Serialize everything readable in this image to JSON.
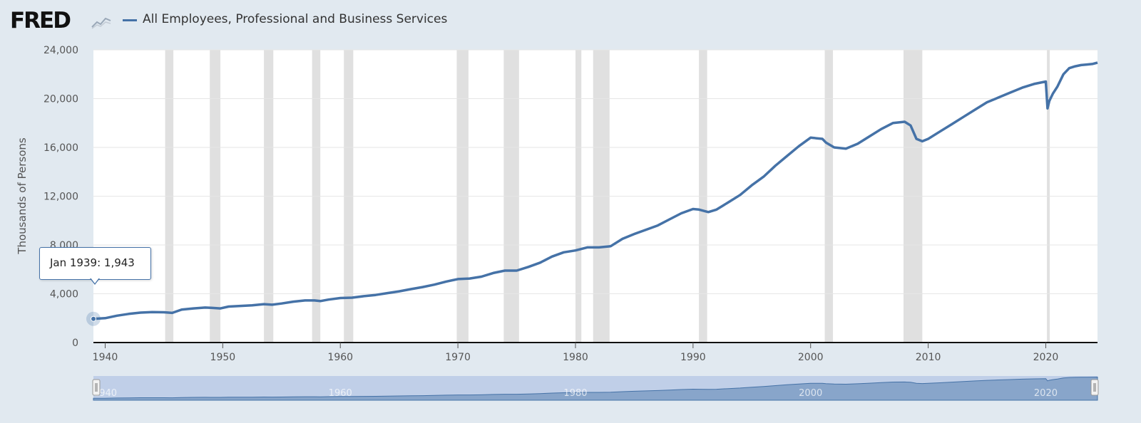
{
  "header": {
    "logo": "FRED",
    "series_title": "All Employees, Professional and Business Services"
  },
  "colors": {
    "series": "#4572a7",
    "recession": "#e0e0e0",
    "background": "#e1e9f0",
    "plot": "#ffffff",
    "navigator": "#b8c8e6"
  },
  "tooltip": {
    "date": "Jan 1939:",
    "value": "1,943"
  },
  "chart_data": {
    "type": "line",
    "title": "All Employees, Professional and Business Services",
    "ylabel": "Thousands of Persons",
    "xlabel": "",
    "ylim": [
      0,
      24000
    ],
    "xlim": [
      1939,
      2024.4
    ],
    "y_ticks": [
      "0",
      "4,000",
      "8,000",
      "12,000",
      "16,000",
      "20,000",
      "24,000"
    ],
    "y_tick_values": [
      0,
      4000,
      8000,
      12000,
      16000,
      20000,
      24000
    ],
    "x_ticks": [
      "1940",
      "1950",
      "1960",
      "1970",
      "1980",
      "1990",
      "2000",
      "2010",
      "2020"
    ],
    "x_tick_values": [
      1940,
      1950,
      1960,
      1970,
      1980,
      1990,
      2000,
      2010,
      2020
    ],
    "navigator_ticks": [
      "1940",
      "1960",
      "1980",
      "2000",
      "2020"
    ],
    "navigator_tick_values": [
      1940,
      1960,
      1980,
      2000,
      2020
    ],
    "recessions": [
      [
        1945.1,
        1945.8
      ],
      [
        1948.9,
        1949.8
      ],
      [
        1953.5,
        1954.3
      ],
      [
        1957.6,
        1958.3
      ],
      [
        1960.3,
        1961.1
      ],
      [
        1969.9,
        1970.9
      ],
      [
        1973.9,
        1975.2
      ],
      [
        1980.0,
        1980.5
      ],
      [
        1981.5,
        1982.9
      ],
      [
        1990.5,
        1991.2
      ],
      [
        2001.2,
        2001.9
      ],
      [
        2007.9,
        2009.5
      ],
      [
        2020.1,
        2020.3
      ]
    ],
    "series": [
      {
        "name": "All Employees, Professional and Business Services",
        "x": [
          1939.0,
          1940.0,
          1941.0,
          1942.0,
          1943.0,
          1944.0,
          1945.0,
          1945.7,
          1946.5,
          1947.5,
          1948.5,
          1949.0,
          1949.8,
          1950.5,
          1951.5,
          1952.5,
          1953.5,
          1954.2,
          1955.0,
          1956.0,
          1957.0,
          1957.8,
          1958.3,
          1959.0,
          1960.0,
          1961.0,
          1962.0,
          1963.0,
          1964.0,
          1965.0,
          1966.0,
          1967.0,
          1968.0,
          1969.0,
          1970.0,
          1971.0,
          1972.0,
          1973.0,
          1974.0,
          1975.0,
          1976.0,
          1977.0,
          1978.0,
          1979.0,
          1980.0,
          1981.0,
          1982.0,
          1983.0,
          1984.0,
          1985.0,
          1986.0,
          1987.0,
          1988.0,
          1989.0,
          1990.0,
          1990.5,
          1991.3,
          1992.0,
          1993.0,
          1994.0,
          1995.0,
          1996.0,
          1997.0,
          1998.0,
          1999.0,
          2000.0,
          2001.0,
          2001.3,
          2002.0,
          2003.0,
          2004.0,
          2005.0,
          2006.0,
          2007.0,
          2008.0,
          2008.5,
          2009.0,
          2009.5,
          2010.0,
          2011.0,
          2012.0,
          2013.0,
          2014.0,
          2015.0,
          2016.0,
          2017.0,
          2018.0,
          2019.0,
          2020.0,
          2020.15,
          2020.3,
          2020.6,
          2021.0,
          2021.5,
          2022.0,
          2022.5,
          2023.0,
          2023.5,
          2024.0,
          2024.4
        ],
        "values": [
          1943,
          2000,
          2200,
          2350,
          2450,
          2500,
          2480,
          2430,
          2700,
          2800,
          2870,
          2850,
          2800,
          2950,
          3000,
          3050,
          3150,
          3100,
          3200,
          3350,
          3450,
          3450,
          3400,
          3520,
          3650,
          3680,
          3800,
          3900,
          4050,
          4200,
          4380,
          4550,
          4750,
          5000,
          5200,
          5250,
          5400,
          5700,
          5900,
          5900,
          6200,
          6550,
          7050,
          7400,
          7550,
          7800,
          7800,
          7900,
          8500,
          8900,
          9250,
          9600,
          10100,
          10600,
          10950,
          10900,
          10700,
          10900,
          11500,
          12100,
          12900,
          13600,
          14500,
          15300,
          16100,
          16800,
          16700,
          16400,
          16000,
          15900,
          16300,
          16900,
          17500,
          18000,
          18100,
          17800,
          16700,
          16500,
          16700,
          17300,
          17900,
          18500,
          19100,
          19700,
          20100,
          20500,
          20900,
          21200,
          21400,
          19200,
          19800,
          20400,
          21000,
          22000,
          22500,
          22650,
          22750,
          22800,
          22850,
          22950
        ]
      }
    ]
  }
}
